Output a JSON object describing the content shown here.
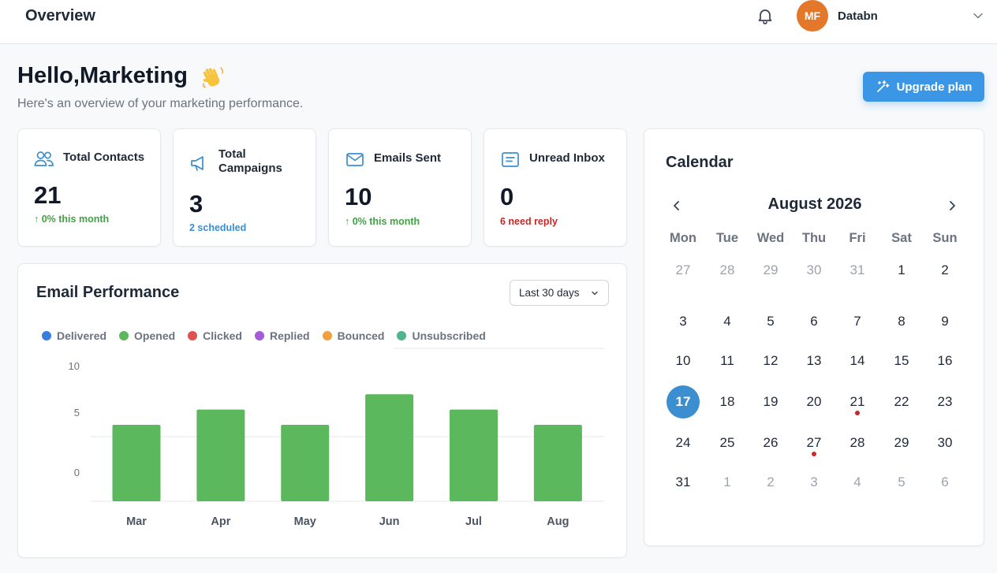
{
  "header": {
    "title": "Overview",
    "user": {
      "initials": "MF",
      "name": "Databn"
    }
  },
  "greeting": {
    "title": "Hello,Marketing",
    "subtitle": "Here's an overview of your marketing performance."
  },
  "upgrade_label": "Upgrade plan",
  "stats": [
    {
      "label": "Total Contacts",
      "value": "21",
      "note": "↑ 0% this month",
      "note_color": "#43a047",
      "icon": "users-icon"
    },
    {
      "label": "Total Campaigns",
      "value": "3",
      "note": "2 scheduled",
      "note_color": "#3b8ed0",
      "icon": "megaphone-icon"
    },
    {
      "label": "Emails Sent",
      "value": "10",
      "note": "↑ 0% this month",
      "note_color": "#43a047",
      "icon": "mail-icon"
    },
    {
      "label": "Unread Inbox",
      "value": "0",
      "note": "6 need reply",
      "note_color": "#c62828",
      "icon": "inbox-icon"
    }
  ],
  "performance": {
    "title": "Email Performance",
    "range": "Last 30 days",
    "legend": [
      {
        "name": "Delivered",
        "color": "#3b7ddd"
      },
      {
        "name": "Opened",
        "color": "#5cb85c"
      },
      {
        "name": "Clicked",
        "color": "#e05252"
      },
      {
        "name": "Replied",
        "color": "#a35bd6"
      },
      {
        "name": "Bounced",
        "color": "#f0a03c"
      },
      {
        "name": "Unsubscribed",
        "color": "#4fb58e"
      }
    ]
  },
  "chart_data": {
    "type": "bar",
    "categories": [
      "Mar",
      "Apr",
      "May",
      "Jun",
      "Jul",
      "Aug"
    ],
    "series": [
      {
        "name": "Opened",
        "color": "#5cb85c",
        "values": [
          5,
          6,
          5,
          7,
          6,
          5
        ]
      }
    ],
    "y_ticks": [
      "10",
      "5",
      "0"
    ],
    "grid": true
  },
  "calendar": {
    "title": "Calendar",
    "month": "August 2026",
    "weekdays": [
      "Mon",
      "Tue",
      "Wed",
      "Thu",
      "Fri",
      "Sat",
      "Sun"
    ],
    "weeks": [
      [
        {
          "d": "27",
          "m": true
        },
        {
          "d": "28",
          "m": true
        },
        {
          "d": "29",
          "m": true
        },
        {
          "d": "30",
          "m": true
        },
        {
          "d": "31",
          "m": true
        },
        {
          "d": "1"
        },
        {
          "d": "2"
        }
      ],
      [
        {
          "d": "3"
        },
        {
          "d": "4"
        },
        {
          "d": "5"
        },
        {
          "d": "6"
        },
        {
          "d": "7"
        },
        {
          "d": "8"
        },
        {
          "d": "9"
        }
      ],
      [
        {
          "d": "10"
        },
        {
          "d": "11"
        },
        {
          "d": "12"
        },
        {
          "d": "13"
        },
        {
          "d": "14"
        },
        {
          "d": "15"
        },
        {
          "d": "16"
        }
      ],
      [
        {
          "d": "17",
          "today": true
        },
        {
          "d": "18"
        },
        {
          "d": "19"
        },
        {
          "d": "20"
        },
        {
          "d": "21",
          "event": true
        },
        {
          "d": "22"
        },
        {
          "d": "23"
        }
      ],
      [
        {
          "d": "24"
        },
        {
          "d": "25"
        },
        {
          "d": "26"
        },
        {
          "d": "27",
          "event": true
        },
        {
          "d": "28"
        },
        {
          "d": "29"
        },
        {
          "d": "30"
        }
      ],
      [
        {
          "d": "31"
        },
        {
          "d": "1",
          "m": true
        },
        {
          "d": "2",
          "m": true
        },
        {
          "d": "3",
          "m": true
        },
        {
          "d": "4",
          "m": true
        },
        {
          "d": "5",
          "m": true
        },
        {
          "d": "6",
          "m": true
        }
      ]
    ]
  }
}
